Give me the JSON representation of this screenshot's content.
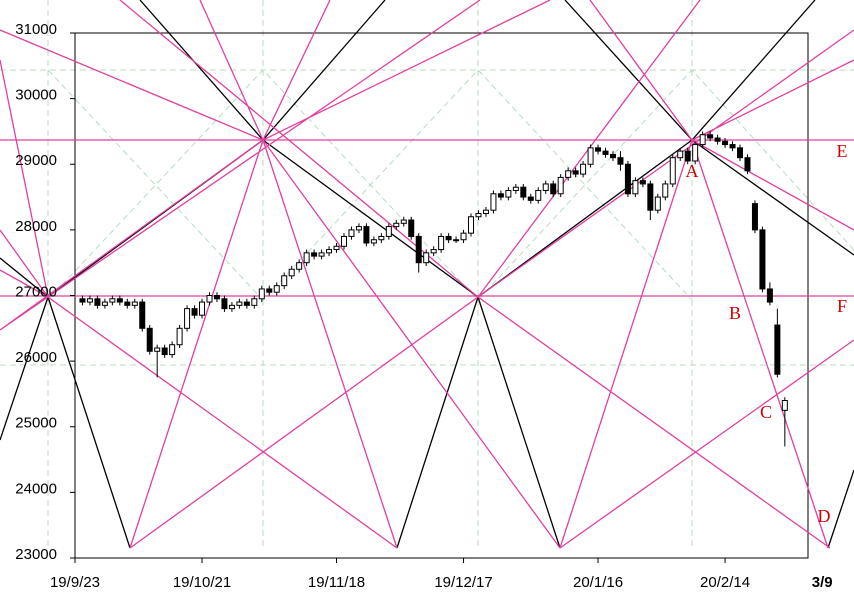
{
  "chart_data": {
    "type": "candlestick",
    "x": [
      1,
      2,
      3,
      4,
      5,
      6,
      7,
      8,
      9,
      10,
      11,
      12,
      13,
      14,
      15,
      16,
      17,
      18,
      19,
      20,
      21,
      22,
      23,
      24,
      25,
      26,
      27,
      28,
      29,
      30,
      31,
      32,
      33,
      34,
      35,
      36,
      37,
      38,
      39,
      40,
      41,
      42,
      43,
      44,
      45,
      46,
      47,
      48,
      49,
      50,
      51,
      52,
      53,
      54,
      55,
      56,
      57,
      58,
      59,
      60,
      61,
      62,
      63,
      64,
      65,
      66,
      67,
      68,
      69,
      70,
      71,
      72,
      73,
      74,
      75,
      76,
      77,
      78,
      79,
      80,
      81,
      82,
      83,
      84,
      85,
      86,
      87,
      88,
      89,
      90,
      91,
      92,
      93,
      94,
      95
    ],
    "ohlc": [
      [
        26950,
        27000,
        26850,
        26900
      ],
      [
        26900,
        27000,
        26850,
        26950
      ],
      [
        26950,
        27000,
        26800,
        26850
      ],
      [
        26850,
        26950,
        26800,
        26900
      ],
      [
        26900,
        27000,
        26850,
        26950
      ],
      [
        26950,
        27000,
        26850,
        26900
      ],
      [
        26900,
        26950,
        26800,
        26850
      ],
      [
        26850,
        26950,
        26800,
        26900
      ],
      [
        26900,
        26950,
        26450,
        26500
      ],
      [
        26500,
        26550,
        26100,
        26150
      ],
      [
        26150,
        26250,
        25750,
        26200
      ],
      [
        26200,
        26250,
        26050,
        26100
      ],
      [
        26100,
        26300,
        26050,
        26250
      ],
      [
        26250,
        26550,
        26200,
        26500
      ],
      [
        26500,
        26850,
        26450,
        26800
      ],
      [
        26800,
        26850,
        26650,
        26700
      ],
      [
        26700,
        26950,
        26650,
        26900
      ],
      [
        26900,
        27050,
        26850,
        27000
      ],
      [
        27000,
        27050,
        26900,
        26950
      ],
      [
        26950,
        27000,
        26750,
        26800
      ],
      [
        26800,
        26900,
        26750,
        26850
      ],
      [
        26850,
        26950,
        26800,
        26900
      ],
      [
        26900,
        26950,
        26800,
        26850
      ],
      [
        26850,
        27000,
        26800,
        26950
      ],
      [
        26950,
        27150,
        26900,
        27100
      ],
      [
        27100,
        27150,
        27000,
        27050
      ],
      [
        27050,
        27200,
        27000,
        27150
      ],
      [
        27150,
        27350,
        27100,
        27300
      ],
      [
        27300,
        27450,
        27250,
        27400
      ],
      [
        27400,
        27550,
        27350,
        27500
      ],
      [
        27500,
        27700,
        27450,
        27650
      ],
      [
        27650,
        27700,
        27550,
        27600
      ],
      [
        27600,
        27700,
        27550,
        27650
      ],
      [
        27650,
        27750,
        27600,
        27700
      ],
      [
        27700,
        27800,
        27650,
        27750
      ],
      [
        27750,
        27950,
        27700,
        27900
      ],
      [
        27900,
        28050,
        27850,
        28000
      ],
      [
        28000,
        28100,
        27950,
        28050
      ],
      [
        28050,
        28100,
        27750,
        27800
      ],
      [
        27800,
        27900,
        27750,
        27850
      ],
      [
        27850,
        27950,
        27800,
        27900
      ],
      [
        27900,
        28100,
        27850,
        28050
      ],
      [
        28050,
        28150,
        28000,
        28100
      ],
      [
        28100,
        28200,
        28050,
        28150
      ],
      [
        28150,
        28200,
        27850,
        27900
      ],
      [
        27900,
        27950,
        27350,
        27500
      ],
      [
        27500,
        27700,
        27450,
        27650
      ],
      [
        27650,
        27750,
        27600,
        27700
      ],
      [
        27700,
        27950,
        27650,
        27900
      ],
      [
        27900,
        27950,
        27800,
        27850
      ],
      [
        27850,
        27900,
        27800,
        27850
      ],
      [
        27850,
        28000,
        27800,
        27950
      ],
      [
        27950,
        28250,
        27900,
        28200
      ],
      [
        28200,
        28300,
        28150,
        28250
      ],
      [
        28250,
        28350,
        28200,
        28300
      ],
      [
        28300,
        28600,
        28250,
        28550
      ],
      [
        28550,
        28600,
        28450,
        28500
      ],
      [
        28500,
        28650,
        28450,
        28600
      ],
      [
        28600,
        28700,
        28550,
        28650
      ],
      [
        28650,
        28700,
        28450,
        28500
      ],
      [
        28500,
        28550,
        28400,
        28450
      ],
      [
        28450,
        28650,
        28400,
        28600
      ],
      [
        28600,
        28750,
        28550,
        28700
      ],
      [
        28700,
        28750,
        28500,
        28550
      ],
      [
        28550,
        28850,
        28500,
        28800
      ],
      [
        28800,
        28950,
        28750,
        28900
      ],
      [
        28900,
        28950,
        28800,
        28850
      ],
      [
        28850,
        29050,
        28800,
        29000
      ],
      [
        29000,
        29300,
        28950,
        29250
      ],
      [
        29250,
        29300,
        29150,
        29200
      ],
      [
        29200,
        29250,
        29100,
        29150
      ],
      [
        29150,
        29200,
        29050,
        29100
      ],
      [
        29100,
        29200,
        28900,
        29000
      ],
      [
        29000,
        29050,
        28500,
        28550
      ],
      [
        28550,
        28800,
        28500,
        28750
      ],
      [
        28750,
        28800,
        28650,
        28700
      ],
      [
        28700,
        28750,
        28150,
        28300
      ],
      [
        28300,
        28550,
        28250,
        28500
      ],
      [
        28500,
        28750,
        28450,
        28700
      ],
      [
        28700,
        29150,
        28650,
        29100
      ],
      [
        29100,
        29250,
        29050,
        29200
      ],
      [
        29200,
        29250,
        29000,
        29050
      ],
      [
        29050,
        29350,
        29000,
        29300
      ],
      [
        29300,
        29500,
        29250,
        29450
      ],
      [
        29450,
        29500,
        29350,
        29400
      ],
      [
        29400,
        29450,
        29300,
        29350
      ],
      [
        29350,
        29400,
        29250,
        29300
      ],
      [
        29300,
        29350,
        29200,
        29250
      ],
      [
        29250,
        29300,
        29050,
        29100
      ],
      [
        29100,
        29150,
        28850,
        28900
      ],
      [
        28400,
        28450,
        27950,
        28000
      ],
      [
        28000,
        28050,
        27050,
        27100
      ],
      [
        27100,
        27200,
        26850,
        26900
      ],
      [
        26550,
        26800,
        25750,
        25800
      ],
      [
        25250,
        25450,
        24700,
        25400
      ]
    ],
    "xlim": [
      0,
      98.1
    ],
    "xticks": [
      {
        "value": 0,
        "label": "19/9/23"
      },
      {
        "value": 17,
        "label": "19/10/21"
      },
      {
        "value": 35,
        "label": "19/11/18"
      },
      {
        "value": 52,
        "label": "19/12/17"
      },
      {
        "value": 70,
        "label": "20/1/16"
      },
      {
        "value": 87,
        "label": "20/2/14"
      },
      {
        "value": 100,
        "label": "3/9"
      }
    ],
    "ylim": [
      23000,
      31000
    ],
    "yticks": [
      23000,
      24000,
      25000,
      26000,
      27000,
      28000,
      29000,
      30000,
      31000
    ],
    "annotations": [
      "A",
      "B",
      "C",
      "D",
      "E",
      "F"
    ]
  }
}
